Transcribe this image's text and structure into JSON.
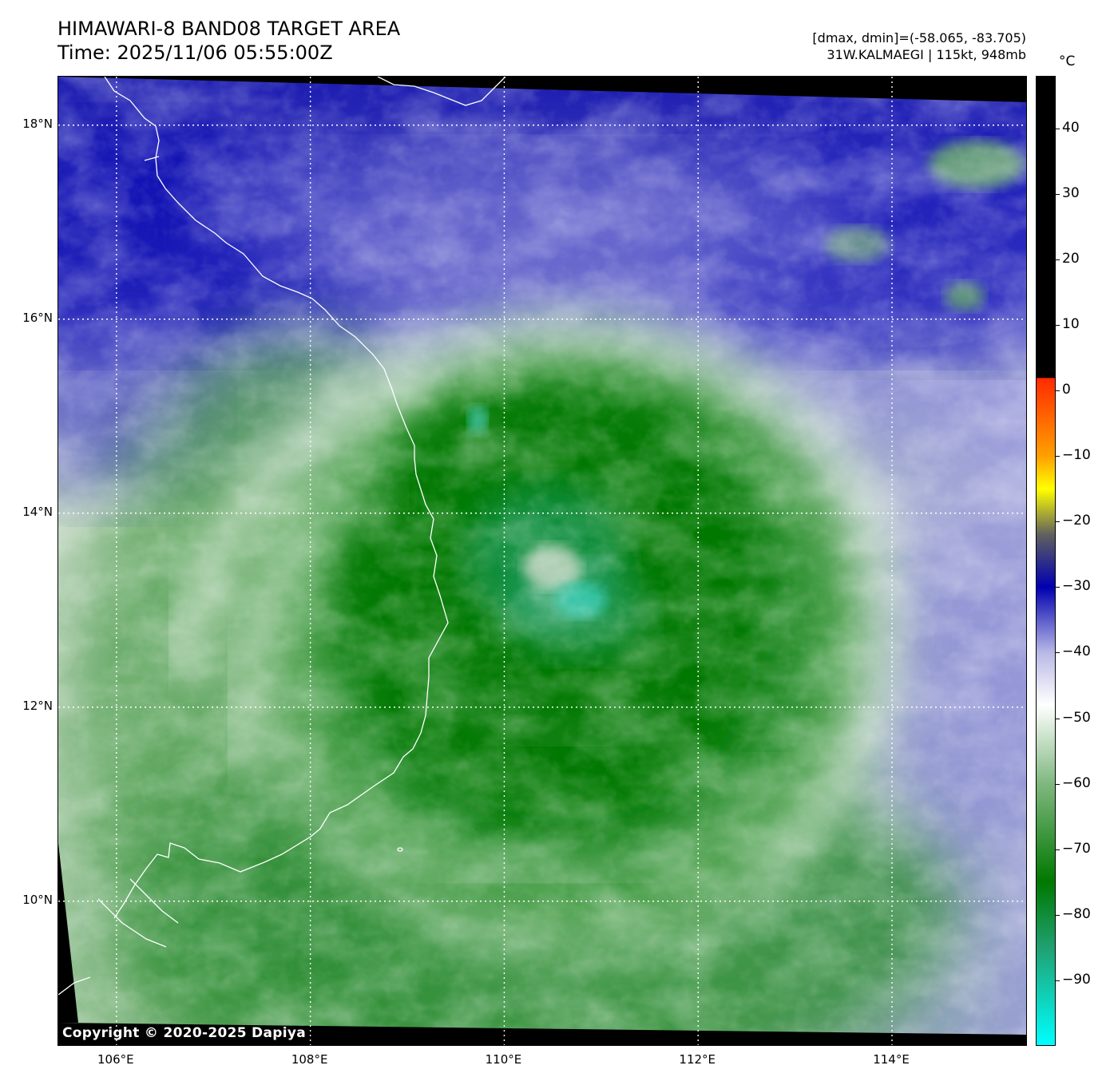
{
  "header": {
    "title_line1": "HIMAWARI-8 BAND08 TARGET AREA",
    "title_line2": "Time: 2025/11/06 05:55:00Z",
    "info_line1": "[dmax, dmin]=(-58.065, -83.705)",
    "info_line2": "31W.KALMAEGI | 115kt, 948mb"
  },
  "map": {
    "lat_range": [
      8.5,
      18.5
    ],
    "lon_range": [
      105.4,
      115.4
    ],
    "lat_ticks": [
      {
        "value": 18,
        "label": "18°N"
      },
      {
        "value": 16,
        "label": "16°N"
      },
      {
        "value": 14,
        "label": "14°N"
      },
      {
        "value": 12,
        "label": "12°N"
      },
      {
        "value": 10,
        "label": "10°N"
      }
    ],
    "lon_ticks": [
      {
        "value": 106,
        "label": "106°E"
      },
      {
        "value": 108,
        "label": "108°E"
      },
      {
        "value": 110,
        "label": "110°E"
      },
      {
        "value": 112,
        "label": "112°E"
      },
      {
        "value": 114,
        "label": "114°E"
      }
    ],
    "storm_center": {
      "lon": 110.7,
      "lat": 13.2
    },
    "copyright": "Copyright © 2020-2025 Dapiya"
  },
  "colorbar": {
    "unit": "°C",
    "range": [
      -100,
      48
    ],
    "ticks": [
      {
        "value": 40,
        "label": "40"
      },
      {
        "value": 30,
        "label": "30"
      },
      {
        "value": 20,
        "label": "20"
      },
      {
        "value": 10,
        "label": "10"
      },
      {
        "value": 0,
        "label": "0"
      },
      {
        "value": -10,
        "label": "−10"
      },
      {
        "value": -20,
        "label": "−20"
      },
      {
        "value": -30,
        "label": "−30"
      },
      {
        "value": -40,
        "label": "−40"
      },
      {
        "value": -50,
        "label": "−50"
      },
      {
        "value": -60,
        "label": "−60"
      },
      {
        "value": -70,
        "label": "−70"
      },
      {
        "value": -80,
        "label": "−80"
      },
      {
        "value": -90,
        "label": "−90"
      }
    ],
    "color_stops": [
      {
        "value": 48,
        "color": "#000000"
      },
      {
        "value": 2,
        "color": "#000000"
      },
      {
        "value": 1.9,
        "color": "#ff2a00"
      },
      {
        "value": -10,
        "color": "#ffa000"
      },
      {
        "value": -15,
        "color": "#ffff00"
      },
      {
        "value": -22,
        "color": "#606060"
      },
      {
        "value": -30,
        "color": "#0000b0"
      },
      {
        "value": -40,
        "color": "#b8b8e6"
      },
      {
        "value": -48,
        "color": "#ffffff"
      },
      {
        "value": -60,
        "color": "#80b880"
      },
      {
        "value": -75,
        "color": "#007800"
      },
      {
        "value": -85,
        "color": "#20a070"
      },
      {
        "value": -100,
        "color": "#00ffff"
      }
    ]
  }
}
